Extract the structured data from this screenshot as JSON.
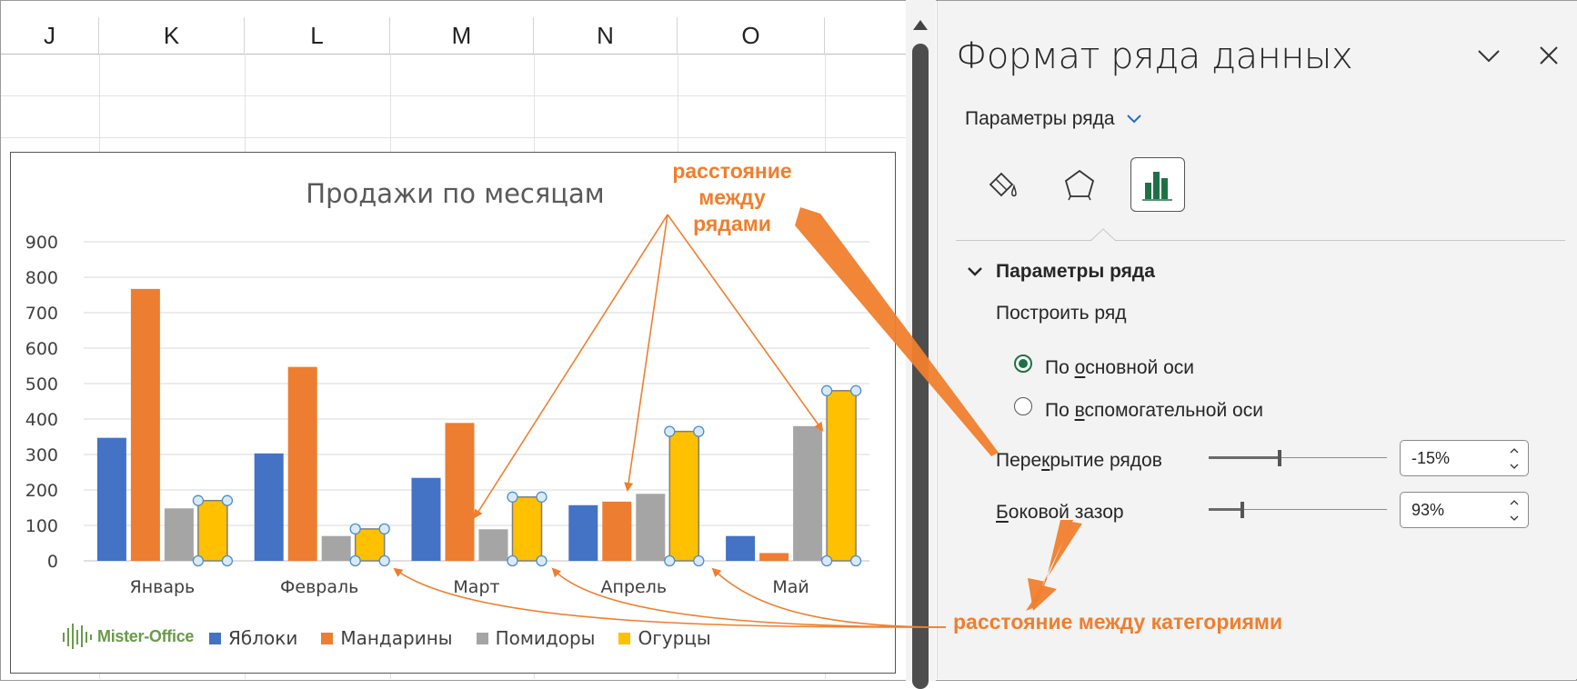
{
  "spreadsheet": {
    "columns": [
      "J",
      "K",
      "L",
      "M",
      "N",
      "O"
    ]
  },
  "chart": {
    "title": "Продажи по месяцам",
    "legend": [
      {
        "name": "Яблоки",
        "color": "#4472c4"
      },
      {
        "name": "Мандарины",
        "color": "#ed7d31"
      },
      {
        "name": "Помидоры",
        "color": "#a5a5a5"
      },
      {
        "name": "Огурцы",
        "color": "#ffc000"
      }
    ],
    "logo_text": "Mister-Office"
  },
  "chart_data": {
    "type": "bar",
    "title": "Продажи по месяцам",
    "categories": [
      "Январь",
      "Февраль",
      "Март",
      "Апрель",
      "Май"
    ],
    "series": [
      {
        "name": "Яблоки",
        "color": "#4472c4",
        "values": [
          347,
          303,
          234,
          157,
          70
        ]
      },
      {
        "name": "Мандарины",
        "color": "#ed7d31",
        "values": [
          767,
          547,
          389,
          167,
          22
        ]
      },
      {
        "name": "Помидоры",
        "color": "#a5a5a5",
        "values": [
          148,
          70,
          89,
          189,
          380
        ]
      },
      {
        "name": "Огурцы",
        "color": "#ffc000",
        "values": [
          170,
          90,
          180,
          365,
          480
        ],
        "selected": true
      }
    ],
    "yticks": [
      0,
      100,
      200,
      300,
      400,
      500,
      600,
      700,
      800,
      900
    ],
    "ylim": [
      0,
      900
    ],
    "grid": true,
    "legend_position": "bottom"
  },
  "pane": {
    "title": "Формат ряда данных",
    "options_dropdown": "Параметры ряда",
    "section_title": "Параметры ряда",
    "plot_series_label": "Построить ряд",
    "radio_primary": {
      "pre": "По ",
      "ul": "о",
      "post": "сновной оси"
    },
    "radio_secondary": {
      "pre": "По ",
      "ul": "в",
      "post": "спомогательной оси"
    },
    "overlap": {
      "pre": "Пере",
      "ul": "к",
      "post": "рытие рядов",
      "value": "-15%",
      "fraction": 0.4
    },
    "gap": {
      "pre": "",
      "ul": "Б",
      "post": "оковой зазор",
      "value": "93%",
      "fraction": 0.19
    },
    "icons": [
      "fill-line-icon",
      "effects-icon",
      "series-options-icon"
    ]
  },
  "annotations": {
    "series_gap": [
      "расстояние",
      "между",
      "рядами"
    ],
    "category_gap": "расстояние между категориями",
    "color": "#f07e2d"
  }
}
